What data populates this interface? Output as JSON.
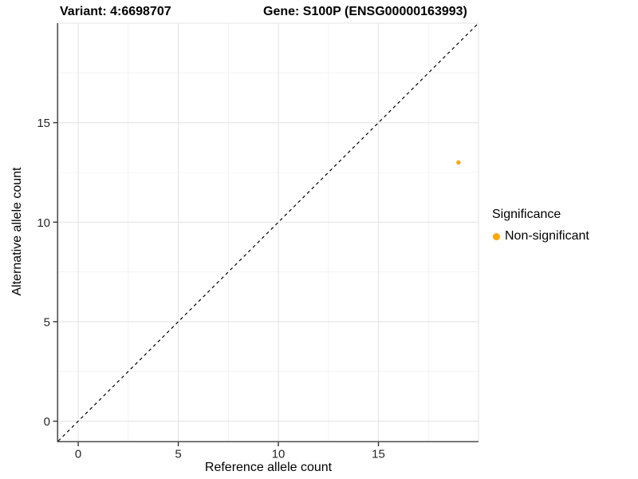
{
  "chart_data": {
    "type": "scatter",
    "title_left": "Variant: 4:6698707",
    "title_right": "Gene: S100P (ENSG00000163993)",
    "xlabel": "Reference allele count",
    "ylabel": "Alternative allele count",
    "xlim": [
      -1,
      20
    ],
    "ylim": [
      -1,
      20
    ],
    "x_ticks": [
      0,
      5,
      10,
      15
    ],
    "y_ticks": [
      0,
      5,
      10,
      15
    ],
    "x_grid_major": [
      0,
      5,
      10,
      15,
      20
    ],
    "y_grid_major": [
      0,
      5,
      10,
      15,
      20
    ],
    "x_grid_minor": [
      2.5,
      7.5,
      12.5,
      17.5
    ],
    "y_grid_minor": [
      2.5,
      7.5,
      12.5,
      17.5
    ],
    "grid": true,
    "identity_line": {
      "style": "dashed",
      "color": "#000000",
      "from": -1,
      "to": 20
    },
    "series": [
      {
        "name": "Non-significant",
        "color": "#FFA500",
        "points": [
          {
            "x": 19,
            "y": 13
          }
        ]
      }
    ],
    "legend": {
      "title": "Significance",
      "position": "right",
      "items": [
        {
          "label": "Non-significant",
          "color": "#FFA500"
        }
      ]
    },
    "colors": {
      "axis_line": "#4d4d4d",
      "tick_mark": "#333333",
      "tick_label": "#262626",
      "grid_major": "#e4e4e4",
      "grid_minor": "#f0f0f0",
      "point": "#FFA500"
    }
  }
}
